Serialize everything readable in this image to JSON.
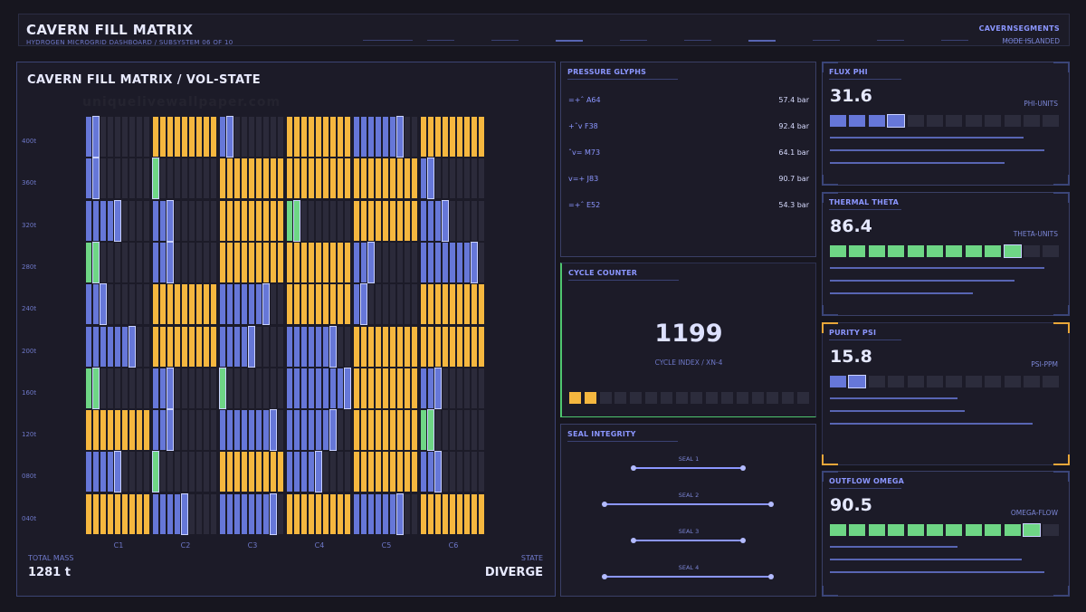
{
  "header": {
    "title": "CAVERN FILL MATRIX",
    "subtitle": "HYDROGEN MICROGRID DASHBOARD / SUBSYSTEM 06 OF 10",
    "segments_label": "CAVERNSEGMENTS",
    "mode_label": "MODE ISLANDED"
  },
  "matrix": {
    "title": "CAVERN FILL MATRIX / VOL-STATE",
    "y_labels": [
      "400t",
      "360t",
      "320t",
      "280t",
      "240t",
      "200t",
      "160t",
      "120t",
      "080t",
      "040t"
    ],
    "columns": [
      "C1",
      "C2",
      "C3",
      "C4",
      "C5",
      "C6"
    ],
    "colors": {
      "orange": "#f5b73f",
      "blue": "#6677d8",
      "green": "#6ed685",
      "empty": "#2b2a3a",
      "outline": "#c9d1ff"
    },
    "cells": [
      [
        [
          "b",
          2,
          1
        ],
        [
          "o",
          9,
          0
        ],
        [
          "b",
          2,
          1
        ],
        [
          "o",
          9,
          0
        ],
        [
          "b",
          7,
          1
        ],
        [
          "o",
          9,
          0
        ]
      ],
      [
        [
          "b",
          2,
          1
        ],
        [
          "g",
          1,
          1
        ],
        [
          "o",
          9,
          0
        ],
        [
          "o",
          9,
          0
        ],
        [
          "o",
          9,
          0
        ],
        [
          "b",
          2,
          1
        ]
      ],
      [
        [
          "b",
          5,
          1
        ],
        [
          "b",
          3,
          1
        ],
        [
          "o",
          9,
          0
        ],
        [
          "g",
          2,
          1
        ],
        [
          "o",
          9,
          0
        ],
        [
          "b",
          4,
          1
        ]
      ],
      [
        [
          "g",
          2,
          1
        ],
        [
          "b",
          3,
          1
        ],
        [
          "o",
          9,
          0
        ],
        [
          "o",
          9,
          0
        ],
        [
          "b",
          3,
          1
        ],
        [
          "b",
          8,
          1
        ]
      ],
      [
        [
          "b",
          3,
          1
        ],
        [
          "o",
          9,
          0
        ],
        [
          "b",
          7,
          1
        ],
        [
          "o",
          9,
          0
        ],
        [
          "b",
          2,
          1
        ],
        [
          "o",
          9,
          0
        ]
      ],
      [
        [
          "b",
          7,
          1
        ],
        [
          "o",
          9,
          0
        ],
        [
          "b",
          5,
          1
        ],
        [
          "b",
          7,
          1
        ],
        [
          "o",
          9,
          0
        ],
        [
          "o",
          9,
          0
        ]
      ],
      [
        [
          "g",
          2,
          1
        ],
        [
          "b",
          3,
          1
        ],
        [
          "g",
          1,
          1
        ],
        [
          "b",
          9,
          1
        ],
        [
          "o",
          9,
          0
        ],
        [
          "b",
          3,
          1
        ]
      ],
      [
        [
          "o",
          9,
          0
        ],
        [
          "b",
          3,
          1
        ],
        [
          "b",
          8,
          1
        ],
        [
          "b",
          7,
          1
        ],
        [
          "o",
          9,
          0
        ],
        [
          "g",
          2,
          1
        ]
      ],
      [
        [
          "b",
          5,
          1
        ],
        [
          "g",
          1,
          1
        ],
        [
          "o",
          9,
          0
        ],
        [
          "b",
          5,
          1
        ],
        [
          "o",
          9,
          0
        ],
        [
          "b",
          3,
          1
        ]
      ],
      [
        [
          "o",
          9,
          0
        ],
        [
          "b",
          5,
          1
        ],
        [
          "b",
          8,
          1
        ],
        [
          "o",
          9,
          0
        ],
        [
          "b",
          7,
          1
        ],
        [
          "o",
          9,
          0
        ]
      ]
    ],
    "total_mass_label": "TOTAL MASS",
    "total_mass_value": "1281 t",
    "state_label": "STATE",
    "state_value": "DIVERGE"
  },
  "pressure": {
    "title": "PRESSURE GLYPHS",
    "rows": [
      {
        "glyph": "=+ˆ A64",
        "value": "57.4 bar"
      },
      {
        "glyph": "+ˆv F38",
        "value": "92.4 bar"
      },
      {
        "glyph": "ˆv= M73",
        "value": "64.1 bar"
      },
      {
        "glyph": "v=+ J83",
        "value": "90.7 bar"
      },
      {
        "glyph": "=+ˆ E52",
        "value": "54.3 bar"
      }
    ]
  },
  "cycle": {
    "title": "CYCLE COUNTER",
    "value": "1199",
    "sub": "CYCLE INDEX / XN-4",
    "filled": 2,
    "total": 16,
    "fill_color": "#f5b73f"
  },
  "seal": {
    "title": "SEAL INTEGRITY",
    "items": [
      {
        "label": "SEAL 1",
        "span": "short"
      },
      {
        "label": "SEAL 2",
        "span": "long"
      },
      {
        "label": "SEAL 3",
        "span": "short"
      },
      {
        "label": "SEAL 4",
        "span": "long"
      }
    ]
  },
  "metrics": [
    {
      "title": "FLUX PHI",
      "value": "31.6",
      "unit": "PHI-UNITS",
      "filled": 4,
      "total": 12,
      "color": "#6677d8",
      "accent": "blue"
    },
    {
      "title": "THERMAL THETA",
      "value": "86.4",
      "unit": "THETA-UNITS",
      "filled": 10,
      "total": 12,
      "color": "#6ed685",
      "accent": "blue"
    },
    {
      "title": "PURITY PSI",
      "value": "15.8",
      "unit": "PSI-PPM",
      "filled": 2,
      "total": 12,
      "color": "#6677d8",
      "accent": "orange"
    },
    {
      "title": "OUTFLOW OMEGA",
      "value": "90.5",
      "unit": "OMEGA-FLOW",
      "filled": 11,
      "total": 12,
      "color": "#6ed685",
      "accent": "blue"
    }
  ],
  "watermark": "uniquelivewallpaper.com"
}
